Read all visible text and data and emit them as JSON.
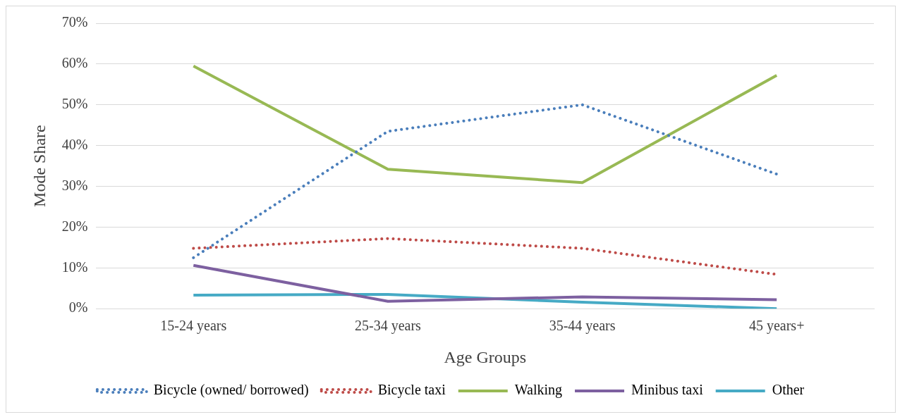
{
  "chart_data": {
    "type": "line",
    "xlabel": "Age Groups",
    "ylabel": "Mode Share",
    "categories": [
      "15-24 years",
      "25-34 years",
      "35-44 years",
      "45 years+"
    ],
    "series": [
      {
        "name": "Bicycle (owned/ borrowed)",
        "color": "#4a7ebb",
        "line_style": "dotted",
        "values": [
          12.5,
          43.5,
          50,
          33
        ]
      },
      {
        "name": "Bicycle taxi",
        "color": "#be4b48",
        "line_style": "dotted",
        "values": [
          14.8,
          17.2,
          14.8,
          8.4
        ]
      },
      {
        "name": "Walking",
        "color": "#98b954",
        "line_style": "solid",
        "values": [
          59.5,
          34.2,
          30.9,
          57.2
        ]
      },
      {
        "name": "Minibus taxi",
        "color": "#7d60a0",
        "line_style": "solid",
        "values": [
          10.6,
          1.8,
          2.9,
          2.2
        ]
      },
      {
        "name": "Other",
        "color": "#46aac5",
        "line_style": "solid",
        "values": [
          3.3,
          3.5,
          1.6,
          0
        ]
      }
    ],
    "ylim": [
      0,
      70
    ],
    "yticks": [
      {
        "value": 0,
        "label": "0%"
      },
      {
        "value": 10,
        "label": "10%"
      },
      {
        "value": 20,
        "label": "20%"
      },
      {
        "value": 30,
        "label": "30%"
      },
      {
        "value": 40,
        "label": "40%"
      },
      {
        "value": 50,
        "label": "50%"
      },
      {
        "value": 60,
        "label": "60%"
      },
      {
        "value": 70,
        "label": "70%"
      }
    ],
    "grid": "y",
    "legend": "bottom",
    "marker": "none"
  }
}
